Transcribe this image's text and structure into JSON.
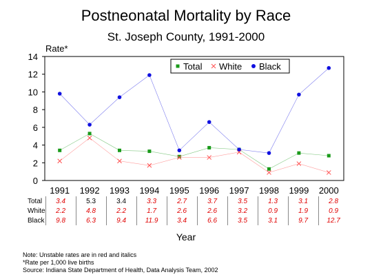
{
  "chart_data": {
    "type": "line",
    "title": "Postneonatal Mortality by Race",
    "subtitle": "St. Joseph County, 1991-2000",
    "ylabel": "Rate*",
    "xlabel": "Year",
    "categories": [
      "1991",
      "1992",
      "1993",
      "1994",
      "1995",
      "1996",
      "1997",
      "1998",
      "1999",
      "2000"
    ],
    "ylim": [
      0,
      14
    ],
    "yticks": [
      0,
      2,
      4,
      6,
      8,
      10,
      12,
      14
    ],
    "legend_position": "top-right",
    "series": [
      {
        "name": "Total",
        "color": "#1a9a1a",
        "marker": "square",
        "values": [
          3.4,
          5.3,
          3.4,
          3.3,
          2.7,
          3.7,
          3.5,
          1.3,
          3.1,
          2.8
        ],
        "labels": [
          "3.4",
          "5.3",
          "3.4",
          "3.3",
          "2.7",
          "3.7",
          "3.5",
          "1.3",
          "3.1",
          "2.8"
        ],
        "unstable": [
          true,
          false,
          false,
          true,
          true,
          true,
          true,
          true,
          true,
          true
        ]
      },
      {
        "name": "White",
        "color": "#ff5050",
        "marker": "x",
        "values": [
          2.2,
          4.8,
          2.2,
          1.7,
          2.6,
          2.6,
          3.2,
          0.9,
          1.9,
          0.9
        ],
        "labels": [
          "2.2",
          "4.8",
          "2.2",
          "1.7",
          "2.6",
          "2.6",
          "3.2",
          "0.9",
          "1.9",
          "0.9"
        ],
        "unstable": [
          true,
          true,
          true,
          true,
          true,
          true,
          true,
          true,
          true,
          true
        ]
      },
      {
        "name": "Black",
        "color": "#1010e0",
        "marker": "circle",
        "values": [
          9.8,
          6.3,
          9.4,
          11.9,
          3.4,
          6.6,
          3.5,
          3.1,
          9.7,
          12.7
        ],
        "labels": [
          "9.8",
          "6.3",
          "9.4",
          "11.9",
          "3.4",
          "6.6",
          "3.5",
          "3.1",
          "9.7",
          "12.7"
        ],
        "unstable": [
          true,
          true,
          true,
          true,
          true,
          true,
          true,
          true,
          true,
          true
        ]
      }
    ]
  },
  "notes": [
    "Note:  Unstable rates are in red and italics",
    "*Rate per 1,000 live births",
    "Source:  Indiana State Department of Health, Data Analysis Team, 2002"
  ]
}
